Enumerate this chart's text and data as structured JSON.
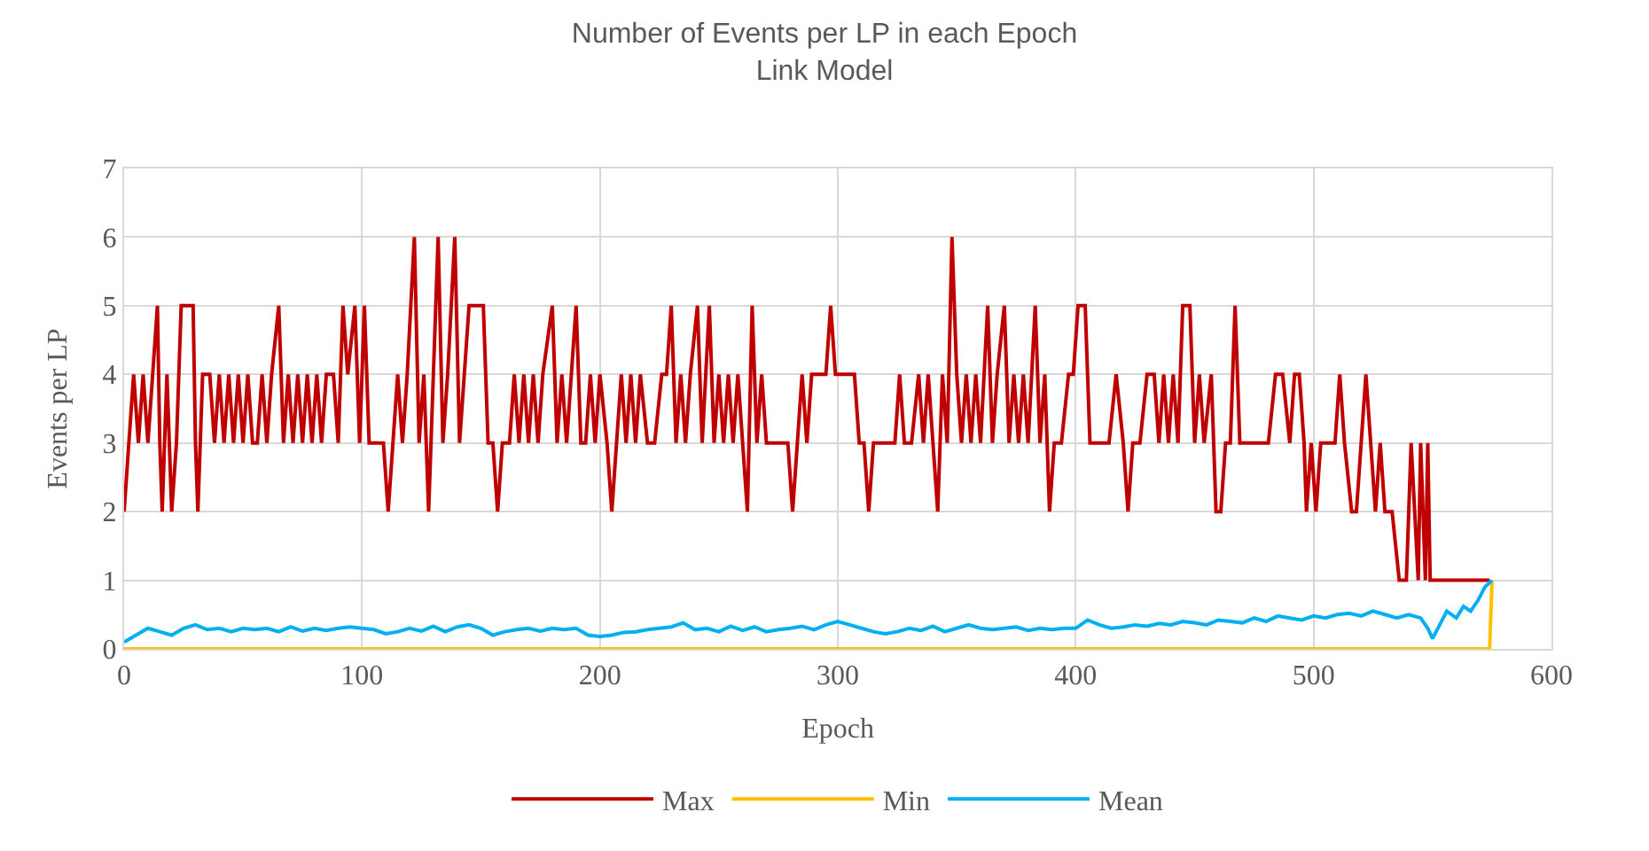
{
  "chart_data": {
    "type": "line",
    "title": "Number of Events per LP in each Epoch",
    "subtitle": "Link Model",
    "xlabel": "Epoch",
    "ylabel": "Events per LP",
    "xlim": [
      0,
      600
    ],
    "xticks": [
      0,
      100,
      200,
      300,
      400,
      500,
      600
    ],
    "ylim": [
      0,
      7
    ],
    "yticks": [
      0,
      1,
      2,
      3,
      4,
      5,
      6,
      7
    ],
    "grid": true,
    "legend": "bottom",
    "marker": "none",
    "line_style": "solid",
    "series": [
      {
        "name": "Max",
        "color": "#c00000",
        "x": [
          0,
          2,
          4,
          6,
          8,
          10,
          12,
          14,
          15,
          16,
          18,
          20,
          22,
          24,
          29,
          30,
          31,
          33,
          36,
          38,
          40,
          42,
          44,
          46,
          48,
          50,
          52,
          54,
          56,
          58,
          60,
          62,
          65,
          67,
          69,
          71,
          73,
          75,
          77,
          79,
          81,
          83,
          85,
          88,
          90,
          92,
          94,
          97,
          99,
          101,
          103,
          106,
          109,
          111,
          113,
          115,
          117,
          119,
          122,
          124,
          126,
          128,
          130,
          132,
          134,
          136,
          139,
          141,
          143,
          145,
          151,
          153,
          155,
          157,
          159,
          162,
          164,
          166,
          168,
          170,
          172,
          174,
          176,
          180,
          182,
          184,
          186,
          188,
          190,
          192,
          194,
          196,
          198,
          200,
          203,
          205,
          207,
          209,
          211,
          213,
          215,
          217,
          220,
          223,
          226,
          228,
          230,
          232,
          234,
          236,
          238,
          241,
          243,
          246,
          248,
          250,
          252,
          254,
          256,
          258,
          260,
          262,
          264,
          266,
          268,
          270,
          273,
          276,
          279,
          281,
          283,
          285,
          287,
          289,
          292,
          295,
          297,
          299,
          307,
          309,
          311,
          313,
          315,
          320,
          324,
          326,
          328,
          331,
          334,
          336,
          338,
          340,
          342,
          344,
          346,
          348,
          350,
          352,
          354,
          356,
          358,
          360,
          363,
          365,
          367,
          370,
          372,
          374,
          376,
          378,
          380,
          383,
          385,
          387,
          389,
          391,
          394,
          397,
          399,
          401,
          404,
          406,
          410,
          414,
          417,
          420,
          422,
          424,
          427,
          430,
          433,
          435,
          437,
          439,
          441,
          443,
          445,
          448,
          450,
          452,
          454,
          457,
          459,
          461,
          463,
          465,
          467,
          469,
          473,
          477,
          481,
          484,
          487,
          490,
          492,
          494,
          496,
          497,
          499,
          501,
          503,
          507,
          509,
          511,
          513,
          516,
          518,
          520,
          522,
          524,
          526,
          528,
          530,
          533,
          536,
          539,
          541,
          544,
          545,
          547,
          548,
          549,
          574
        ],
        "values": [
          2,
          3,
          4,
          3,
          4,
          3,
          4,
          5,
          3,
          2,
          4,
          2,
          3,
          5,
          5,
          3,
          2,
          4,
          4,
          3,
          4,
          3,
          4,
          3,
          4,
          3,
          4,
          3,
          3,
          4,
          3,
          4,
          5,
          3,
          4,
          3,
          4,
          3,
          4,
          3,
          4,
          3,
          4,
          4,
          3,
          5,
          4,
          5,
          3,
          5,
          3,
          3,
          3,
          2,
          3,
          4,
          3,
          4,
          6,
          3,
          4,
          2,
          4,
          6,
          3,
          4,
          6,
          3,
          4,
          5,
          5,
          3,
          3,
          2,
          3,
          3,
          4,
          3,
          4,
          3,
          4,
          3,
          4,
          5,
          3,
          4,
          3,
          4,
          5,
          3,
          3,
          4,
          3,
          4,
          3,
          2,
          3,
          4,
          3,
          4,
          3,
          4,
          3,
          3,
          4,
          4,
          5,
          3,
          4,
          3,
          4,
          5,
          3,
          5,
          3,
          4,
          3,
          4,
          3,
          4,
          3,
          2,
          5,
          3,
          4,
          3,
          3,
          3,
          3,
          2,
          3,
          4,
          3,
          4,
          4,
          4,
          5,
          4,
          4,
          3,
          3,
          2,
          3,
          3,
          3,
          4,
          3,
          3,
          4,
          3,
          4,
          3,
          2,
          4,
          3,
          6,
          4,
          3,
          4,
          3,
          4,
          3,
          5,
          3,
          4,
          5,
          3,
          4,
          3,
          4,
          3,
          5,
          3,
          4,
          2,
          3,
          3,
          4,
          4,
          5,
          5,
          3,
          3,
          3,
          4,
          3,
          2,
          3,
          3,
          4,
          4,
          3,
          4,
          3,
          4,
          3,
          5,
          5,
          3,
          4,
          3,
          4,
          2,
          2,
          3,
          3,
          5,
          3,
          3,
          3,
          3,
          4,
          4,
          3,
          4,
          4,
          3,
          2,
          3,
          2,
          3,
          3,
          3,
          4,
          3,
          2,
          2,
          3,
          4,
          3,
          2,
          3,
          2,
          2,
          1,
          1,
          3,
          1,
          3,
          1,
          3,
          1,
          1
        ]
      },
      {
        "name": "Min",
        "color": "#ffc000",
        "x": [
          0,
          574,
          575
        ],
        "values": [
          0,
          0,
          1
        ]
      },
      {
        "name": "Mean",
        "color": "#00b0f0",
        "x": [
          0,
          5,
          10,
          15,
          20,
          25,
          30,
          35,
          40,
          45,
          50,
          55,
          60,
          65,
          70,
          75,
          80,
          85,
          90,
          95,
          100,
          105,
          110,
          115,
          120,
          125,
          130,
          135,
          140,
          145,
          150,
          155,
          160,
          165,
          170,
          175,
          180,
          185,
          190,
          195,
          200,
          205,
          210,
          215,
          220,
          225,
          230,
          235,
          240,
          245,
          250,
          255,
          260,
          265,
          270,
          275,
          280,
          285,
          290,
          295,
          300,
          305,
          310,
          315,
          320,
          325,
          330,
          335,
          340,
          345,
          350,
          355,
          360,
          365,
          370,
          375,
          380,
          385,
          390,
          395,
          400,
          405,
          410,
          415,
          420,
          425,
          430,
          435,
          440,
          445,
          450,
          455,
          460,
          465,
          470,
          475,
          480,
          485,
          490,
          495,
          500,
          505,
          510,
          515,
          520,
          525,
          530,
          535,
          540,
          545,
          548,
          550,
          553,
          556,
          560,
          563,
          566,
          569,
          572,
          575
        ],
        "values": [
          0.1,
          0.2,
          0.3,
          0.25,
          0.2,
          0.3,
          0.35,
          0.28,
          0.3,
          0.25,
          0.3,
          0.28,
          0.3,
          0.25,
          0.32,
          0.26,
          0.3,
          0.27,
          0.3,
          0.32,
          0.3,
          0.28,
          0.22,
          0.25,
          0.3,
          0.26,
          0.33,
          0.25,
          0.32,
          0.35,
          0.3,
          0.2,
          0.25,
          0.28,
          0.3,
          0.26,
          0.3,
          0.28,
          0.3,
          0.2,
          0.18,
          0.2,
          0.24,
          0.25,
          0.28,
          0.3,
          0.32,
          0.38,
          0.28,
          0.3,
          0.25,
          0.33,
          0.27,
          0.32,
          0.25,
          0.28,
          0.3,
          0.33,
          0.28,
          0.35,
          0.4,
          0.35,
          0.3,
          0.25,
          0.22,
          0.25,
          0.3,
          0.27,
          0.33,
          0.25,
          0.3,
          0.35,
          0.3,
          0.28,
          0.3,
          0.32,
          0.27,
          0.3,
          0.28,
          0.3,
          0.3,
          0.42,
          0.35,
          0.3,
          0.32,
          0.35,
          0.33,
          0.37,
          0.35,
          0.4,
          0.38,
          0.35,
          0.42,
          0.4,
          0.38,
          0.45,
          0.4,
          0.48,
          0.45,
          0.42,
          0.48,
          0.45,
          0.5,
          0.52,
          0.48,
          0.55,
          0.5,
          0.45,
          0.5,
          0.45,
          0.3,
          0.15,
          0.35,
          0.55,
          0.45,
          0.62,
          0.55,
          0.7,
          0.9,
          1
        ]
      }
    ]
  }
}
